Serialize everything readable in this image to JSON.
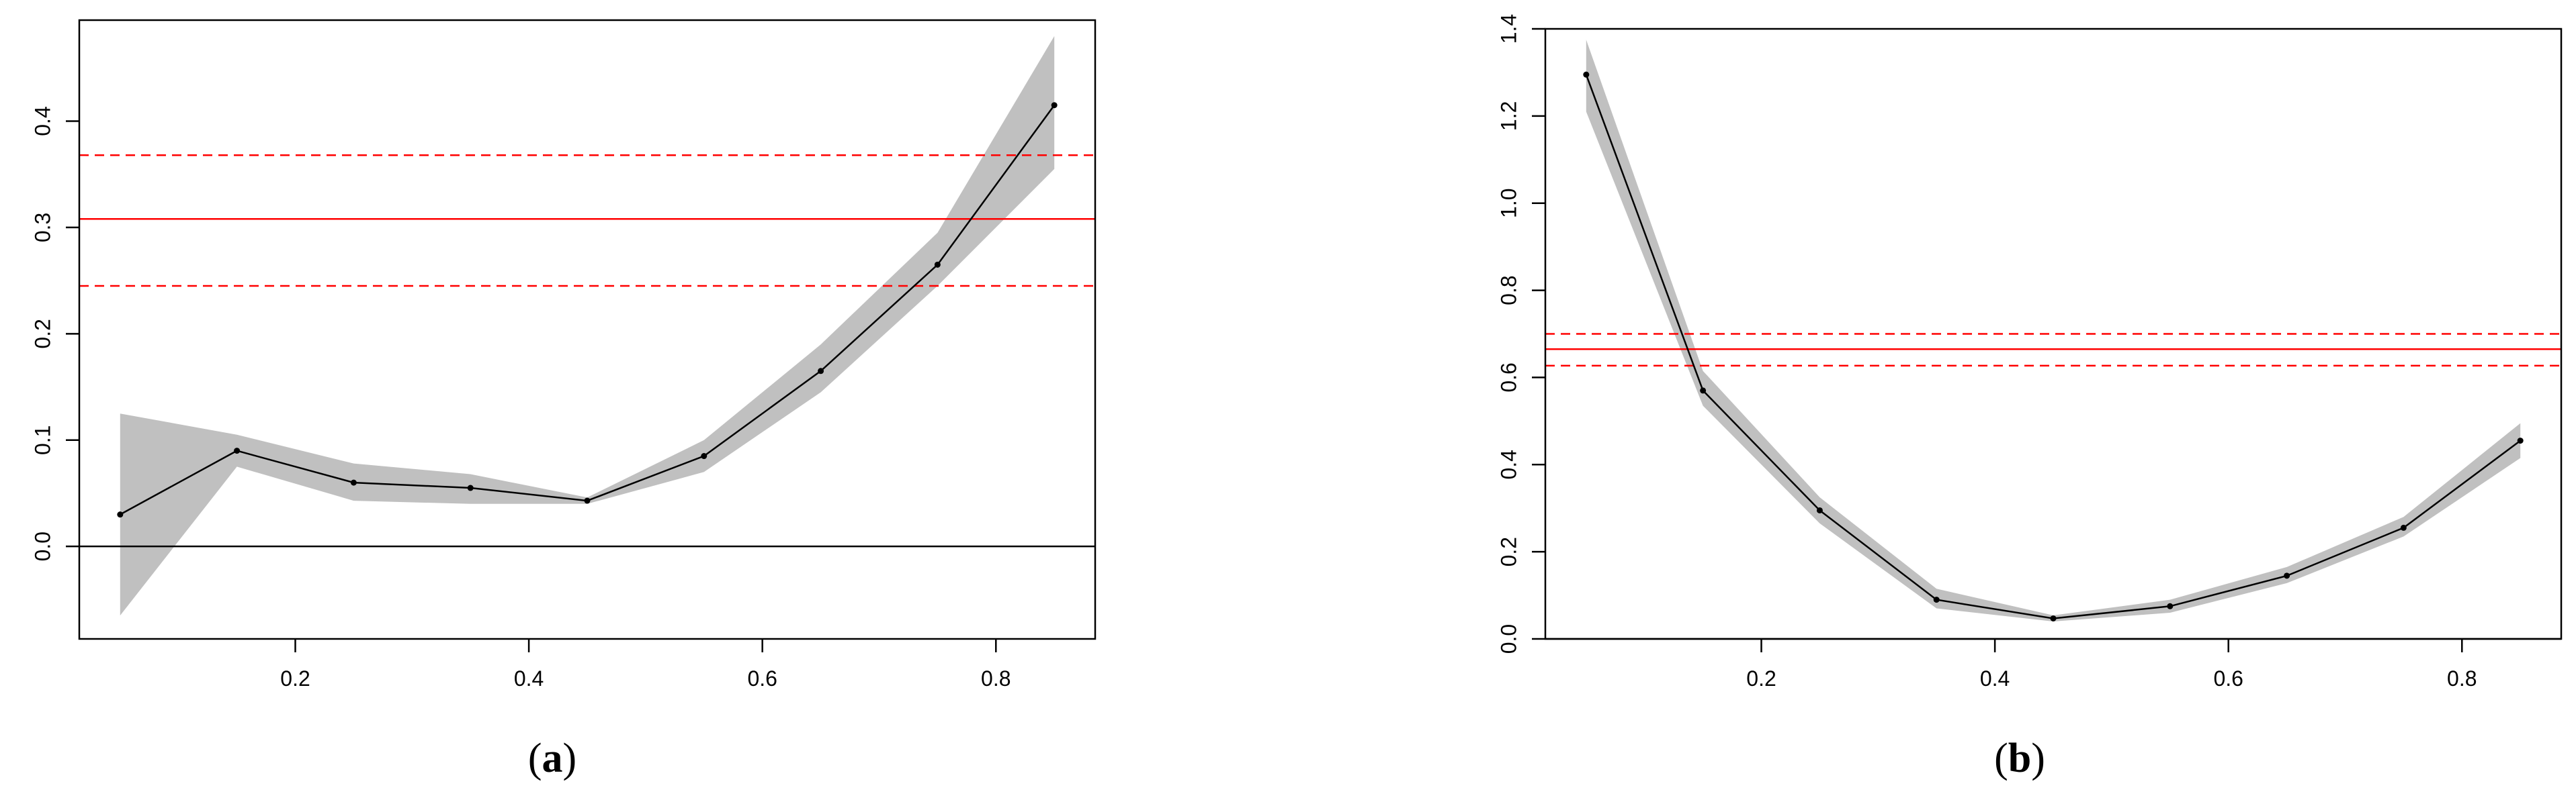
{
  "chart_data": [
    {
      "type": "line",
      "label": "a",
      "x": [
        0.05,
        0.15,
        0.25,
        0.35,
        0.45,
        0.55,
        0.65,
        0.75,
        0.85
      ],
      "series": [
        {
          "values": [
            0.03,
            0.09,
            0.06,
            0.055,
            0.043,
            0.085,
            0.165,
            0.265,
            0.415
          ],
          "lower": [
            -0.065,
            0.075,
            0.043,
            0.04,
            0.04,
            0.07,
            0.145,
            0.245,
            0.355
          ],
          "upper": [
            0.125,
            0.105,
            0.078,
            0.068,
            0.046,
            0.1,
            0.19,
            0.295,
            0.48
          ]
        }
      ],
      "reference_lines": [
        {
          "y": 0.308,
          "style": "solid",
          "color": "#ff0000"
        },
        {
          "y": 0.368,
          "style": "dashed",
          "color": "#ff0000"
        },
        {
          "y": 0.245,
          "style": "dashed",
          "color": "#ff0000"
        },
        {
          "y": 0.0,
          "style": "solid",
          "color": "#000000"
        }
      ],
      "xlim": [
        0.015,
        0.885
      ],
      "ylim": [
        -0.087,
        0.495
      ],
      "xticks": [
        0.2,
        0.4,
        0.6,
        0.8
      ],
      "xtick_labels": [
        "0.2",
        "0.4",
        "0.6",
        "0.8"
      ],
      "yticks": [
        0.0,
        0.1,
        0.2,
        0.3,
        0.4
      ],
      "ytick_labels": [
        "0.0",
        "0.1",
        "0.2",
        "0.3",
        "0.4"
      ],
      "grid": false,
      "band_color": "#c0c0c0"
    },
    {
      "type": "line",
      "label": "b",
      "x": [
        0.05,
        0.15,
        0.25,
        0.35,
        0.45,
        0.55,
        0.65,
        0.75,
        0.85
      ],
      "series": [
        {
          "values": [
            1.295,
            0.57,
            0.295,
            0.09,
            0.047,
            0.075,
            0.145,
            0.255,
            0.455
          ],
          "lower": [
            1.21,
            0.535,
            0.265,
            0.07,
            0.04,
            0.06,
            0.128,
            0.235,
            0.415
          ],
          "upper": [
            1.375,
            0.615,
            0.325,
            0.115,
            0.054,
            0.09,
            0.165,
            0.28,
            0.495
          ]
        }
      ],
      "reference_lines": [
        {
          "y": 0.665,
          "style": "solid",
          "color": "#ff0000"
        },
        {
          "y": 0.7,
          "style": "dashed",
          "color": "#ff0000"
        },
        {
          "y": 0.627,
          "style": "dashed",
          "color": "#ff0000"
        },
        {
          "y": 0.0,
          "style": "solid",
          "color": "#000000"
        }
      ],
      "xlim": [
        0.015,
        0.885
      ],
      "ylim": [
        0.0,
        1.4
      ],
      "xticks": [
        0.2,
        0.4,
        0.6,
        0.8
      ],
      "xtick_labels": [
        "0.2",
        "0.4",
        "0.6",
        "0.8"
      ],
      "yticks": [
        0.0,
        0.2,
        0.4,
        0.6,
        0.8,
        1.0,
        1.2,
        1.4
      ],
      "ytick_labels": [
        "0.0",
        "0.2",
        "0.4",
        "0.6",
        "0.8",
        "1.0",
        "1.2",
        "1.4"
      ],
      "grid": false,
      "band_color": "#c0c0c0"
    }
  ],
  "captions": {
    "a": {
      "open": "(",
      "letter": "a",
      "close": ")"
    },
    "b": {
      "open": "(",
      "letter": "b",
      "close": ")"
    }
  }
}
